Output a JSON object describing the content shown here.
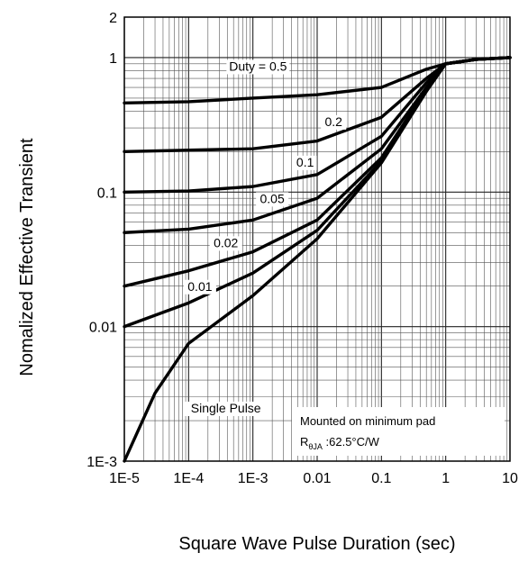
{
  "chart_data": {
    "type": "line",
    "xlabel": "Square Wave Pulse Duration (sec)",
    "ylabel": "Nomalized Effective Transient",
    "xscale": "log",
    "yscale": "log",
    "xlim": [
      1e-05,
      10
    ],
    "ylim": [
      0.001,
      2
    ],
    "grid": true,
    "x_ticks": [
      {
        "value": 1e-05,
        "label": "1E-5"
      },
      {
        "value": 0.0001,
        "label": "1E-4"
      },
      {
        "value": 0.001,
        "label": "1E-3"
      },
      {
        "value": 0.01,
        "label": "0.01"
      },
      {
        "value": 0.1,
        "label": "0.1"
      },
      {
        "value": 1,
        "label": "1"
      },
      {
        "value": 10,
        "label": "10"
      }
    ],
    "y_ticks": [
      {
        "value": 0.001,
        "label": "1E-3"
      },
      {
        "value": 0.01,
        "label": "0.01"
      },
      {
        "value": 0.1,
        "label": "0.1"
      },
      {
        "value": 1,
        "label": "1"
      },
      {
        "value": 2,
        "label": "2"
      }
    ],
    "series": [
      {
        "name": "Duty = 0.5",
        "label": "Duty =  0.5",
        "points": [
          [
            1e-05,
            0.46
          ],
          [
            0.0001,
            0.47
          ],
          [
            0.001,
            0.5
          ],
          [
            0.01,
            0.53
          ],
          [
            0.1,
            0.6
          ],
          [
            0.5,
            0.82
          ],
          [
            1,
            0.9
          ],
          [
            3,
            0.97
          ],
          [
            10,
            1.0
          ]
        ]
      },
      {
        "name": "0.2",
        "label": "0.2",
        "points": [
          [
            1e-05,
            0.2
          ],
          [
            0.0001,
            0.205
          ],
          [
            0.001,
            0.21
          ],
          [
            0.01,
            0.24
          ],
          [
            0.1,
            0.36
          ],
          [
            0.5,
            0.7
          ],
          [
            1,
            0.9
          ],
          [
            3,
            0.97
          ],
          [
            10,
            1.0
          ]
        ]
      },
      {
        "name": "0.1",
        "label": "0.1",
        "points": [
          [
            1e-05,
            0.1
          ],
          [
            0.0001,
            0.102
          ],
          [
            0.001,
            0.11
          ],
          [
            0.01,
            0.135
          ],
          [
            0.1,
            0.26
          ],
          [
            0.5,
            0.65
          ],
          [
            1,
            0.9
          ],
          [
            3,
            0.97
          ],
          [
            10,
            1.0
          ]
        ]
      },
      {
        "name": "0.05",
        "label": "0.05",
        "points": [
          [
            1e-05,
            0.05
          ],
          [
            0.0001,
            0.053
          ],
          [
            0.001,
            0.062
          ],
          [
            0.01,
            0.09
          ],
          [
            0.1,
            0.21
          ],
          [
            0.5,
            0.6
          ],
          [
            1,
            0.9
          ],
          [
            3,
            0.97
          ],
          [
            10,
            1.0
          ]
        ]
      },
      {
        "name": "0.02",
        "label": "0.02",
        "points": [
          [
            1e-05,
            0.02
          ],
          [
            0.0001,
            0.026
          ],
          [
            0.001,
            0.036
          ],
          [
            0.01,
            0.062
          ],
          [
            0.1,
            0.18
          ],
          [
            0.5,
            0.58
          ],
          [
            1,
            0.9
          ],
          [
            3,
            0.97
          ],
          [
            10,
            1.0
          ]
        ]
      },
      {
        "name": "0.01",
        "label": "0.01",
        "points": [
          [
            1e-05,
            0.01
          ],
          [
            0.0001,
            0.015
          ],
          [
            0.001,
            0.025
          ],
          [
            0.01,
            0.052
          ],
          [
            0.1,
            0.17
          ],
          [
            0.5,
            0.57
          ],
          [
            1,
            0.9
          ],
          [
            3,
            0.97
          ],
          [
            10,
            1.0
          ]
        ]
      },
      {
        "name": "Single Pulse",
        "label": "Single Pulse",
        "points": [
          [
            1e-05,
            0.001
          ],
          [
            3e-05,
            0.0032
          ],
          [
            0.0001,
            0.0075
          ],
          [
            0.001,
            0.017
          ],
          [
            0.01,
            0.045
          ],
          [
            0.1,
            0.165
          ],
          [
            0.5,
            0.56
          ],
          [
            1,
            0.9
          ],
          [
            3,
            0.97
          ],
          [
            10,
            1.0
          ]
        ]
      }
    ],
    "annotation": {
      "line1": "Mounted on minimum pad",
      "line2_main": "R",
      "line2_sub": "θJA",
      "line2_rest": " :62.5°C/W"
    }
  }
}
